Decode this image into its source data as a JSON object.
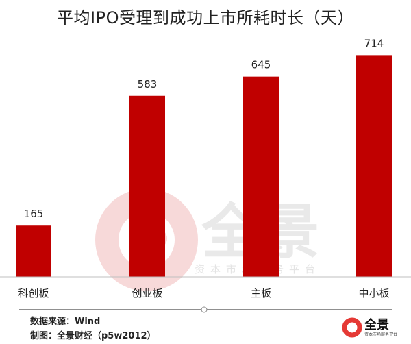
{
  "chart_data": {
    "type": "bar",
    "title": "平均IPO受理到成功上市所耗时长（天）",
    "categories": [
      "科创板",
      "创业板",
      "主板",
      "中小板"
    ],
    "values": [
      165,
      583,
      645,
      714
    ],
    "data_labels": [
      "165",
      "583",
      "645",
      "714"
    ],
    "ylim": [
      0,
      770
    ],
    "grid": false,
    "legend": "none",
    "bar_color": "#c00000"
  },
  "watermark": {
    "brand": "全景",
    "tagline": "资本市场服务平台"
  },
  "footer": {
    "source": "数据来源：Wind",
    "credit": "制图：全景财经（p5w2012）"
  },
  "logo": {
    "name": "全景",
    "sub": "资本市场服务平台"
  },
  "colors": {
    "bar": "#c00000",
    "watermark": "#e9e9e9",
    "accent": "#e53935",
    "axis": "#bfbfbf"
  }
}
